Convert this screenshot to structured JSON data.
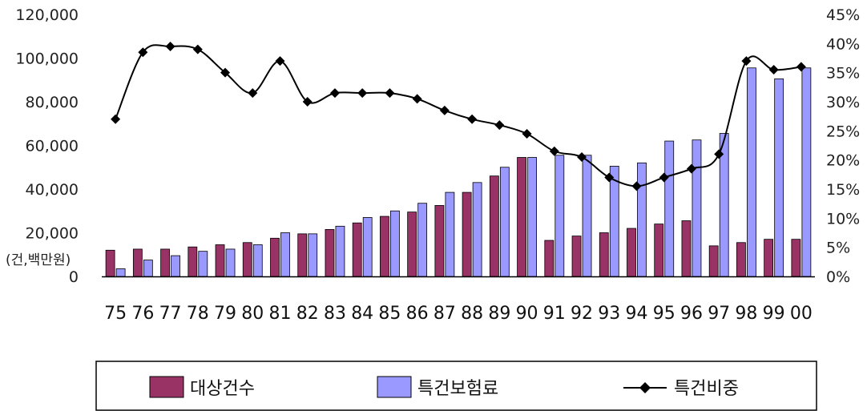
{
  "chart_data": {
    "type": "bar",
    "categories": [
      "75",
      "76",
      "77",
      "78",
      "79",
      "80",
      "81",
      "82",
      "83",
      "84",
      "85",
      "86",
      "87",
      "88",
      "89",
      "90",
      "91",
      "92",
      "93",
      "94",
      "95",
      "96",
      "97",
      "98",
      "99",
      "00"
    ],
    "series": [
      {
        "name": "대상건수",
        "type": "bar",
        "axis": "left",
        "color": "#993366",
        "values": [
          12000,
          12500,
          12500,
          13500,
          14500,
          15500,
          17500,
          19500,
          21500,
          24500,
          27500,
          29500,
          32500,
          38500,
          46000,
          54500,
          16500,
          18500,
          20000,
          22000,
          24000,
          25500,
          14000,
          15500,
          17000,
          17000
        ]
      },
      {
        "name": "특건보험료",
        "type": "bar",
        "axis": "left",
        "color": "#9999ff",
        "values": [
          3500,
          7500,
          9500,
          11500,
          12500,
          14500,
          20000,
          19500,
          23000,
          27000,
          30000,
          33500,
          38500,
          43000,
          50000,
          54500,
          55500,
          55500,
          50500,
          52000,
          62000,
          62500,
          65500,
          95500,
          90500,
          95500
        ]
      },
      {
        "name": "특건비중",
        "type": "line",
        "axis": "right",
        "color": "#000000",
        "values": [
          27,
          38.5,
          39.5,
          39,
          35,
          31.5,
          37,
          30,
          31.5,
          31.5,
          31.5,
          30.5,
          28.5,
          27,
          26,
          24.5,
          21.5,
          20.5,
          17,
          15.5,
          17,
          18.5,
          21,
          37,
          35.5,
          36
        ]
      }
    ],
    "y_left": {
      "ylim": [
        0,
        120000
      ],
      "ticks": [
        "0",
        "20,000",
        "40,000",
        "60,000",
        "80,000",
        "100,000",
        "120,000"
      ],
      "unit_label": "(건,백만원)"
    },
    "y_right": {
      "ylim": [
        0,
        45
      ],
      "ticks": [
        "0%",
        "5%",
        "10%",
        "15%",
        "20%",
        "25%",
        "30%",
        "35%",
        "40%",
        "45%"
      ]
    },
    "grid": false,
    "legend_position": "bottom"
  }
}
